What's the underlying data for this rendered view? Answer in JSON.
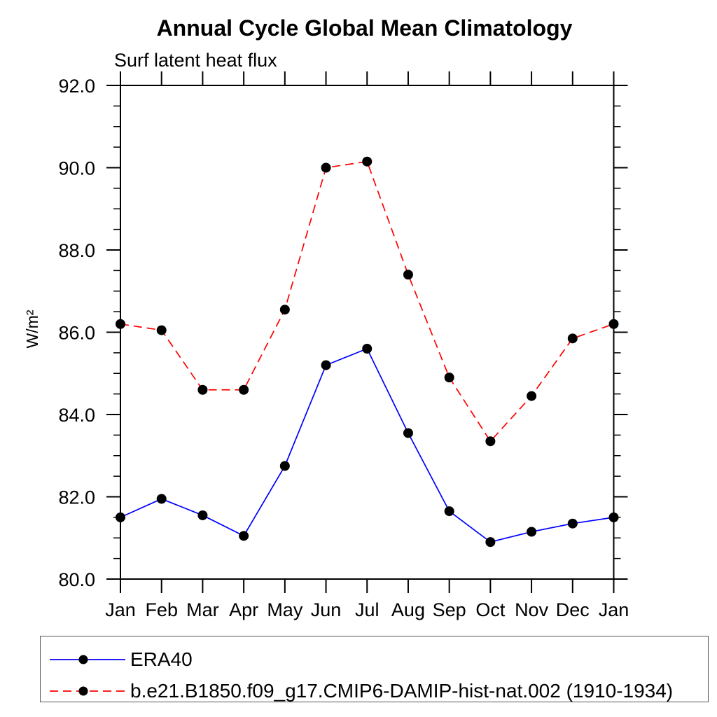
{
  "title": "Annual Cycle Global Mean Climatology",
  "subtitle": "Surf latent heat flux",
  "chart_data": {
    "type": "line",
    "title": "Annual Cycle Global Mean Climatology",
    "subtitle": "Surf latent heat flux",
    "xlabel": "",
    "ylabel": "W/m²",
    "categories": [
      "Jan",
      "Feb",
      "Mar",
      "Apr",
      "May",
      "Jun",
      "Jul",
      "Aug",
      "Sep",
      "Oct",
      "Nov",
      "Dec",
      "Jan"
    ],
    "ylim": [
      80.0,
      92.0
    ],
    "ytick_major_interval": 2.0,
    "ytick_minor_interval": 0.5,
    "ytick_labels": [
      "80.0",
      "82.0",
      "84.0",
      "86.0",
      "88.0",
      "90.0",
      "92.0"
    ],
    "grid": false,
    "tick_direction": "out",
    "legend_position": "bottom-left-box",
    "axis_color": "#000000",
    "series": [
      {
        "name": "ERA40",
        "color": "#0000ff",
        "line_style": "solid",
        "marker": "filled-circle",
        "marker_color": "#000000",
        "values": [
          81.5,
          81.95,
          81.55,
          81.05,
          82.75,
          85.2,
          85.6,
          83.55,
          81.65,
          80.9,
          81.15,
          81.35,
          81.5
        ]
      },
      {
        "name": "b.e21.B1850.f09_g17.CMIP6-DAMIP-hist-nat.002 (1910-1934)",
        "color": "#ff0000",
        "line_style": "dashed",
        "marker": "filled-circle",
        "marker_color": "#000000",
        "values": [
          86.2,
          86.05,
          84.6,
          84.6,
          86.55,
          90.0,
          90.15,
          87.4,
          84.9,
          83.35,
          84.45,
          85.85,
          86.2
        ]
      }
    ]
  }
}
